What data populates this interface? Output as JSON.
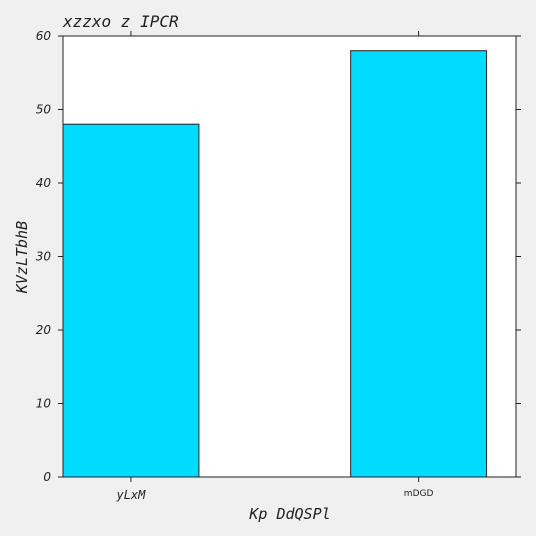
{
  "chart_data": {
    "type": "bar",
    "title": "xzzxo z IPCR",
    "xlabel": "Kp  DdQSPl",
    "ylabel": "KVzLTbhB",
    "categories": [
      "yLxM",
      "mDGD"
    ],
    "values": [
      48,
      58
    ],
    "ylim": [
      0,
      60
    ],
    "yticks": [
      "0",
      "10",
      "20",
      "30",
      "40",
      "50",
      "60"
    ],
    "bar_color": "#00dcff",
    "grid": false
  }
}
